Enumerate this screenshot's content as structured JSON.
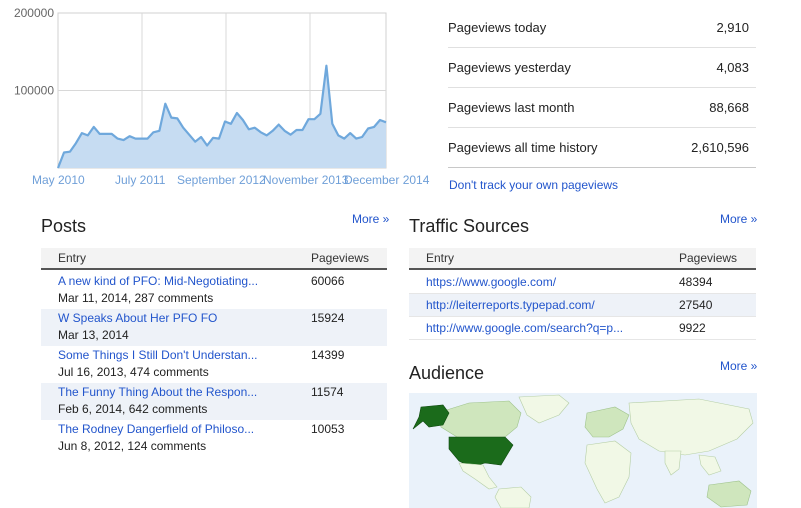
{
  "chart_data": {
    "type": "area",
    "title": "",
    "xlabel": "",
    "ylabel": "",
    "x_tick_labels": [
      "May 2010",
      "July 2011",
      "September 2012",
      "November 2013",
      "December 2014"
    ],
    "y_tick_labels": [
      "200000",
      "100000"
    ],
    "ylim": [
      0,
      200000
    ],
    "grid": true,
    "color": "#6fa8dc",
    "fill_color": "#c6dcf2",
    "series": [
      {
        "values": [
          0,
          20000,
          21000,
          32000,
          45000,
          42000,
          53000,
          44000,
          44000,
          44000,
          38000,
          36000,
          41000,
          38000,
          38000,
          38000,
          46000,
          48000,
          83000,
          65000,
          64000,
          52000,
          43000,
          34000,
          40000,
          29000,
          39000,
          38000,
          60000,
          57000,
          71000,
          62000,
          50000,
          52000,
          46000,
          42000,
          48000,
          56000,
          48000,
          43000,
          49000,
          49000,
          63000,
          63000,
          70000,
          132000,
          57000,
          42000,
          38000,
          45000,
          38000,
          40000,
          51000,
          53000,
          62000,
          59000
        ]
      }
    ]
  },
  "stats": [
    {
      "label": "Pageviews today",
      "value": "2,910"
    },
    {
      "label": "Pageviews yesterday",
      "value": "4,083"
    },
    {
      "label": "Pageviews last month",
      "value": "88,668"
    },
    {
      "label": "Pageviews all time history",
      "value": "2,610,596"
    }
  ],
  "dont_track_link": "Don't track your own pageviews",
  "posts": {
    "title": "Posts",
    "more": "More »",
    "col_entry": "Entry",
    "col_pageviews": "Pageviews",
    "rows": [
      {
        "title": "A new kind of PFO: Mid-Negotiating...",
        "sub": "Mar 11, 2014, 287 comments",
        "pageviews": "60066"
      },
      {
        "title": "W Speaks About Her PFO FO",
        "sub": "Mar 13, 2014",
        "pageviews": "15924"
      },
      {
        "title": "Some Things I Still Don't Understan...",
        "sub": "Jul 16, 2013, 474 comments",
        "pageviews": "14399"
      },
      {
        "title": "The Funny Thing About the Respon...",
        "sub": "Feb 6, 2014, 642 comments",
        "pageviews": "11574"
      },
      {
        "title": "The Rodney Dangerfield of Philoso...",
        "sub": "Jun 8, 2012, 124 comments",
        "pageviews": "10053"
      }
    ]
  },
  "traffic": {
    "title": "Traffic Sources",
    "more": "More »",
    "col_entry": "Entry",
    "col_pageviews": "Pageviews",
    "rows": [
      {
        "url": "https://www.google.com/",
        "pageviews": "48394"
      },
      {
        "url": "http://leiterreports.typepad.com/",
        "pageviews": "27540"
      },
      {
        "url": "http://www.google.com/search?q=p...",
        "pageviews": "9922"
      }
    ]
  },
  "audience": {
    "title": "Audience",
    "more": "More »",
    "colors": {
      "ocean": "#eaf2fa",
      "land": "#f1f8e6",
      "light": "#cfe6bd",
      "mid": "#8cbf72",
      "dark": "#1b6b1b"
    }
  }
}
